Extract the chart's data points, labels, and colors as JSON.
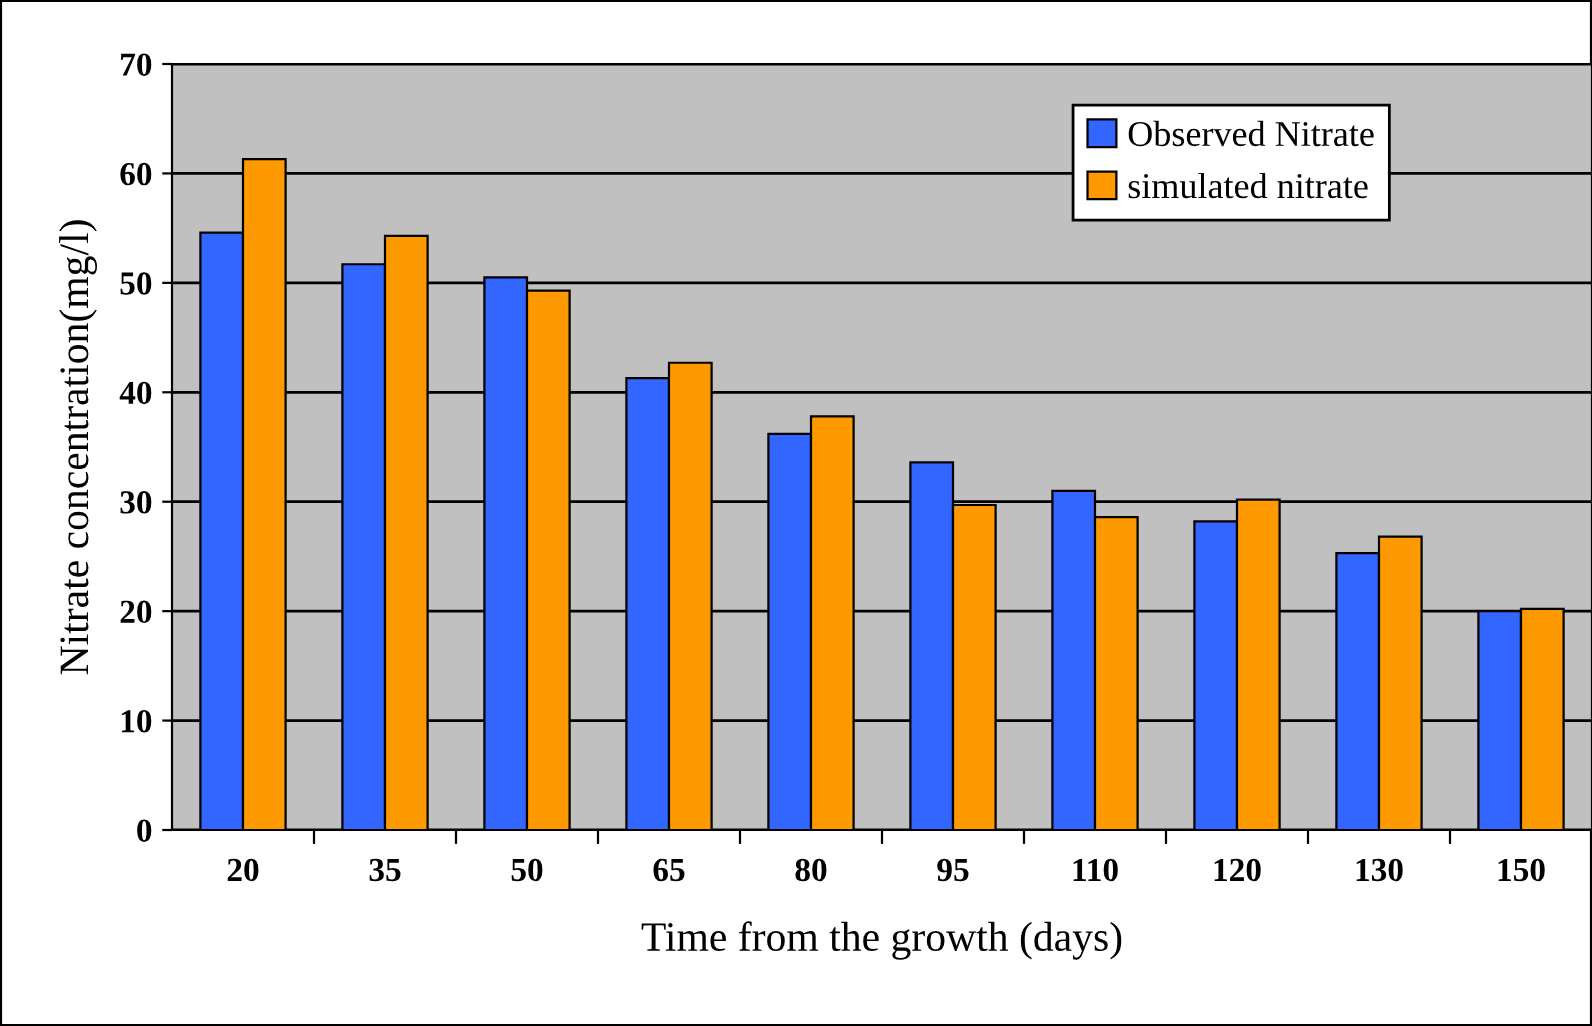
{
  "chart_data": {
    "type": "bar",
    "xlabel": "Time from the growth (days)",
    "ylabel": "Nitrate concentration(mg/l)",
    "categories": [
      "20",
      "35",
      "50",
      "65",
      "80",
      "95",
      "110",
      "120",
      "130",
      "150"
    ],
    "series": [
      {
        "name": "Observed Nitrate",
        "color": "#3366ff",
        "values": [
          54.6,
          51.7,
          50.5,
          41.3,
          36.2,
          33.6,
          31.0,
          28.2,
          25.3,
          20.0
        ]
      },
      {
        "name": "simulated nitrate",
        "color": "#ff9900",
        "values": [
          61.3,
          54.3,
          49.3,
          42.7,
          37.8,
          29.7,
          28.6,
          30.2,
          26.8,
          20.2
        ]
      }
    ],
    "ylim": [
      0,
      70
    ],
    "yticks": [
      0,
      10,
      20,
      30,
      40,
      50,
      60,
      70
    ],
    "grid": "y",
    "legend": "top right"
  }
}
